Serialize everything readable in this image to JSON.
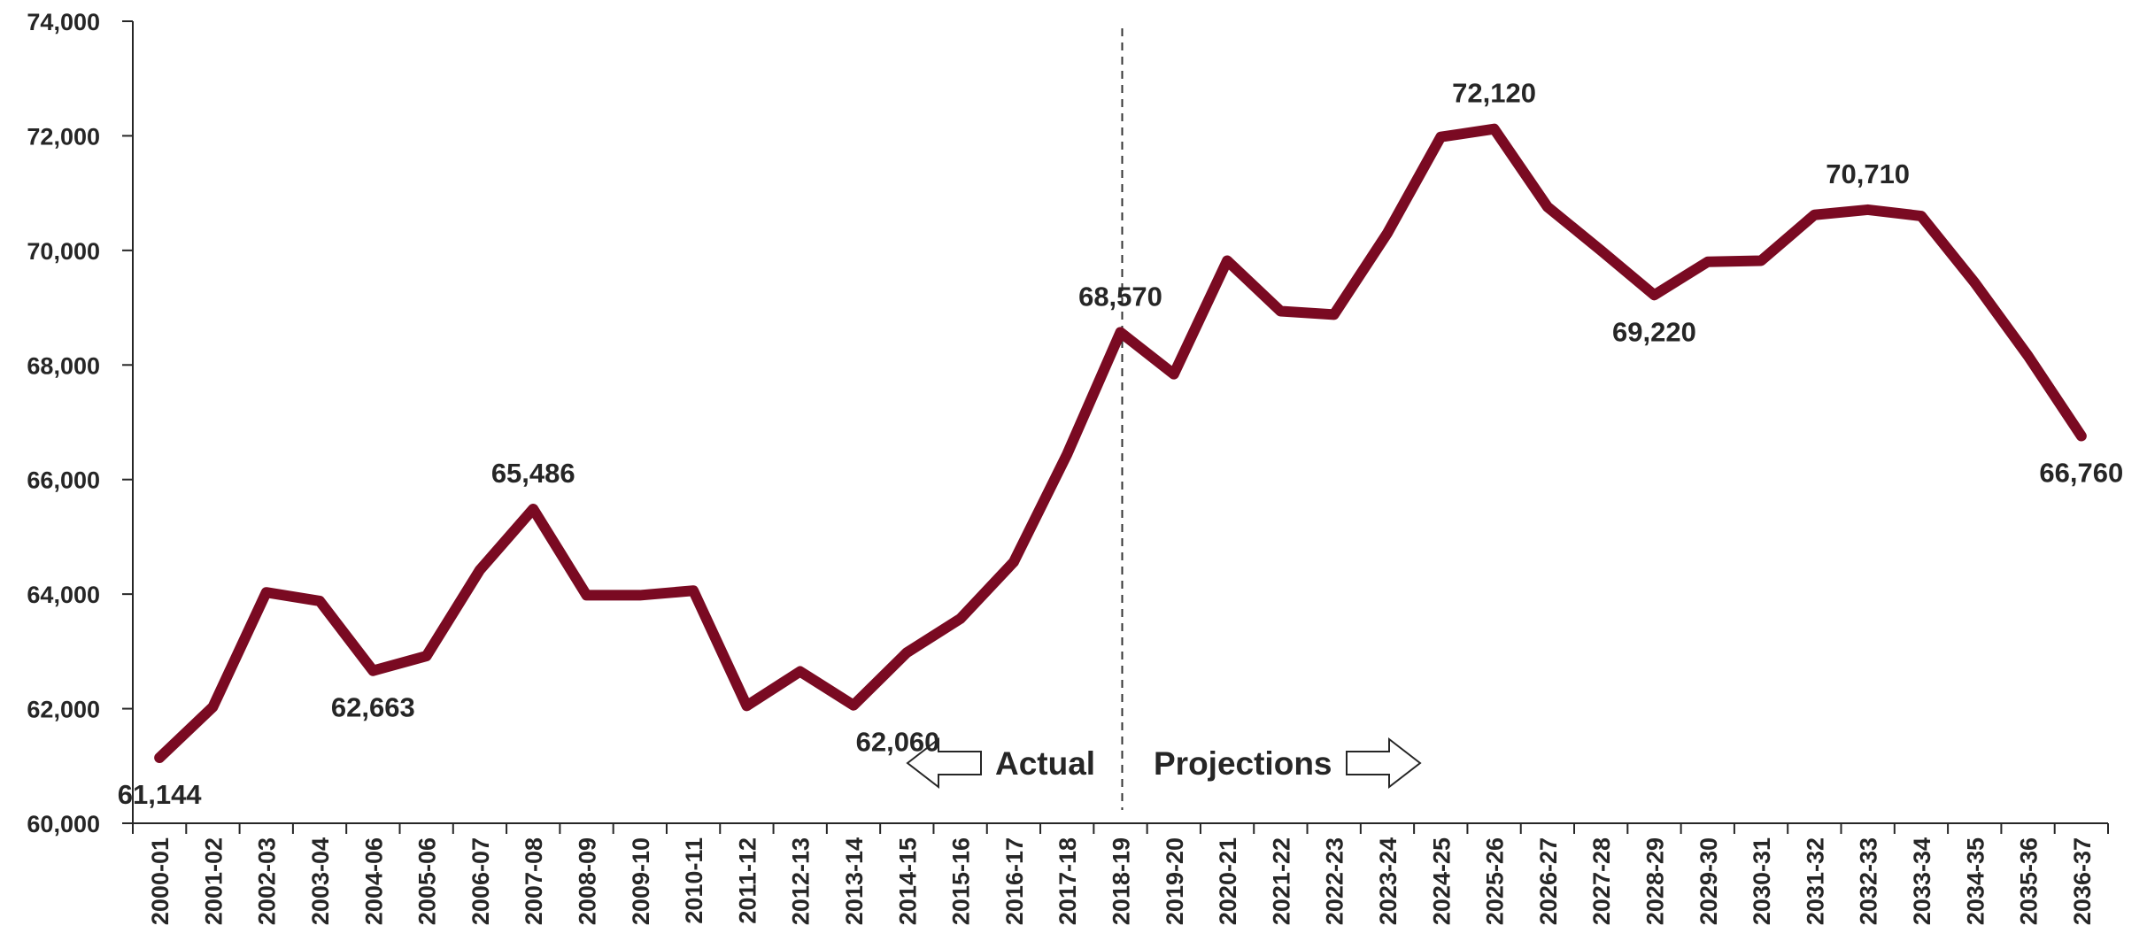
{
  "chart_data": {
    "type": "line",
    "title": "",
    "xlabel": "",
    "ylabel": "",
    "ylim": [
      60000,
      74000
    ],
    "y_ticks": [
      60000,
      62000,
      64000,
      66000,
      68000,
      70000,
      72000,
      74000
    ],
    "y_tick_labels": [
      "60,000",
      "62,000",
      "64,000",
      "66,000",
      "68,000",
      "70,000",
      "72,000",
      "74,000"
    ],
    "grid": false,
    "legend": "none",
    "line_color": "#7a0a22",
    "categories": [
      "2000-01",
      "2001-02",
      "2002-03",
      "2003-04",
      "2004-06",
      "2005-06",
      "2006-07",
      "2007-08",
      "2008-09",
      "2009-10",
      "2010-11",
      "2011-12",
      "2012-13",
      "2013-14",
      "2014-15",
      "2015-16",
      "2016-17",
      "2017-18",
      "2018-19",
      "2019-20",
      "2020-21",
      "2021-22",
      "2022-23",
      "2023-24",
      "2024-25",
      "2025-26",
      "2026-27",
      "2027-28",
      "2028-29",
      "2029-30",
      "2030-31",
      "2031-32",
      "2032-33",
      "2033-34",
      "2034-35",
      "2035-36",
      "2036-37"
    ],
    "series": [
      {
        "values": [
          61144,
          62030,
          64030,
          63880,
          62663,
          62920,
          64420,
          65486,
          63980,
          63980,
          64060,
          62050,
          62650,
          62060,
          62980,
          63570,
          64560,
          66440,
          68570,
          67840,
          69820,
          68940,
          68880,
          70300,
          71980,
          72120,
          70760,
          70000,
          69220,
          69800,
          69820,
          70620,
          70710,
          70600,
          69440,
          68160,
          66760
        ]
      }
    ],
    "data_labels": [
      {
        "index": 0,
        "text": "61,144",
        "pos": "below"
      },
      {
        "index": 4,
        "text": "62,663",
        "pos": "below"
      },
      {
        "index": 7,
        "text": "65,486",
        "pos": "above"
      },
      {
        "index": 13,
        "text": "62,060",
        "pos": "below-right"
      },
      {
        "index": 18,
        "text": "68,570",
        "pos": "above"
      },
      {
        "index": 25,
        "text": "72,120",
        "pos": "above"
      },
      {
        "index": 28,
        "text": "69,220",
        "pos": "below"
      },
      {
        "index": 32,
        "text": "70,710",
        "pos": "above"
      },
      {
        "index": 36,
        "text": "66,760",
        "pos": "below"
      }
    ],
    "divider_after_index": 18,
    "annotations": {
      "actual": "Actual",
      "projections": "Projections"
    }
  }
}
